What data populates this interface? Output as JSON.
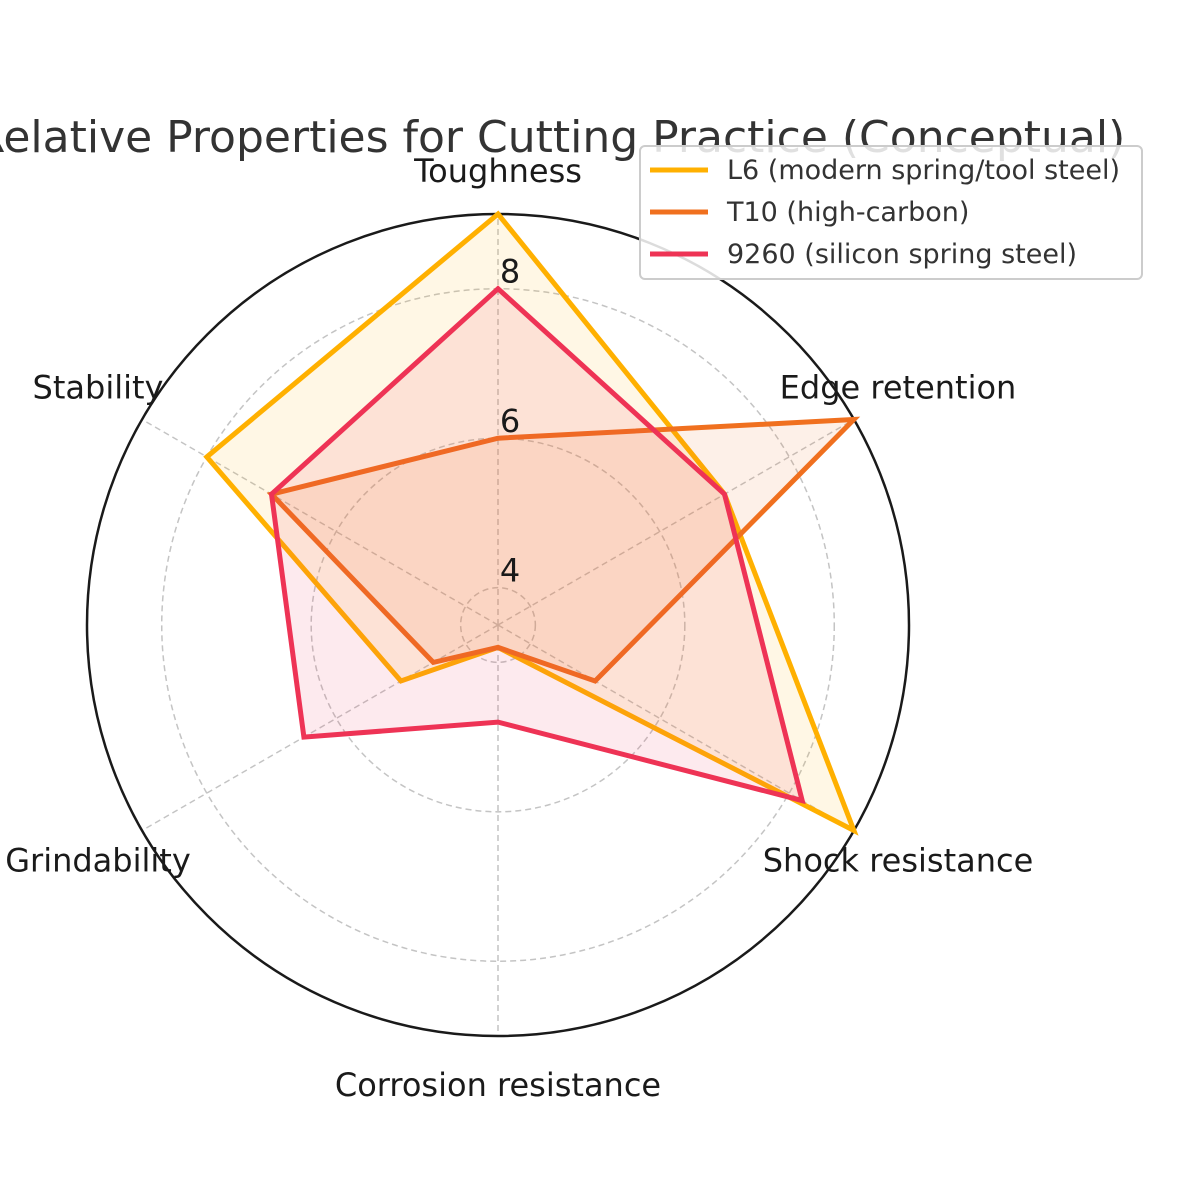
{
  "chart_data": {
    "type": "radar",
    "title": "Relative Properties for Cutting Practice (Conceptual)",
    "axes": [
      "Toughness",
      "Edge retention",
      "Shock resistance",
      "Corrosion resistance",
      "Grindability",
      "Stability"
    ],
    "r_range": [
      3.5,
      9.0
    ],
    "r_ticks": [
      4,
      6,
      8
    ],
    "grid": true,
    "legend_position": "top-right",
    "series": [
      {
        "name": "L6 (modern spring/tool steel)",
        "color": "#FFB000",
        "values": [
          9.0,
          7.0,
          9.0,
          3.8,
          5.0,
          8.0
        ]
      },
      {
        "name": "T10 (high-carbon)",
        "color": "#F0701F",
        "values": [
          6.0,
          9.0,
          5.0,
          3.8,
          4.5,
          7.0
        ]
      },
      {
        "name": "9260 (silicon spring steel)",
        "color": "#EE3355",
        "values": [
          8.0,
          7.0,
          8.2,
          4.8,
          6.5,
          7.0
        ]
      }
    ]
  }
}
